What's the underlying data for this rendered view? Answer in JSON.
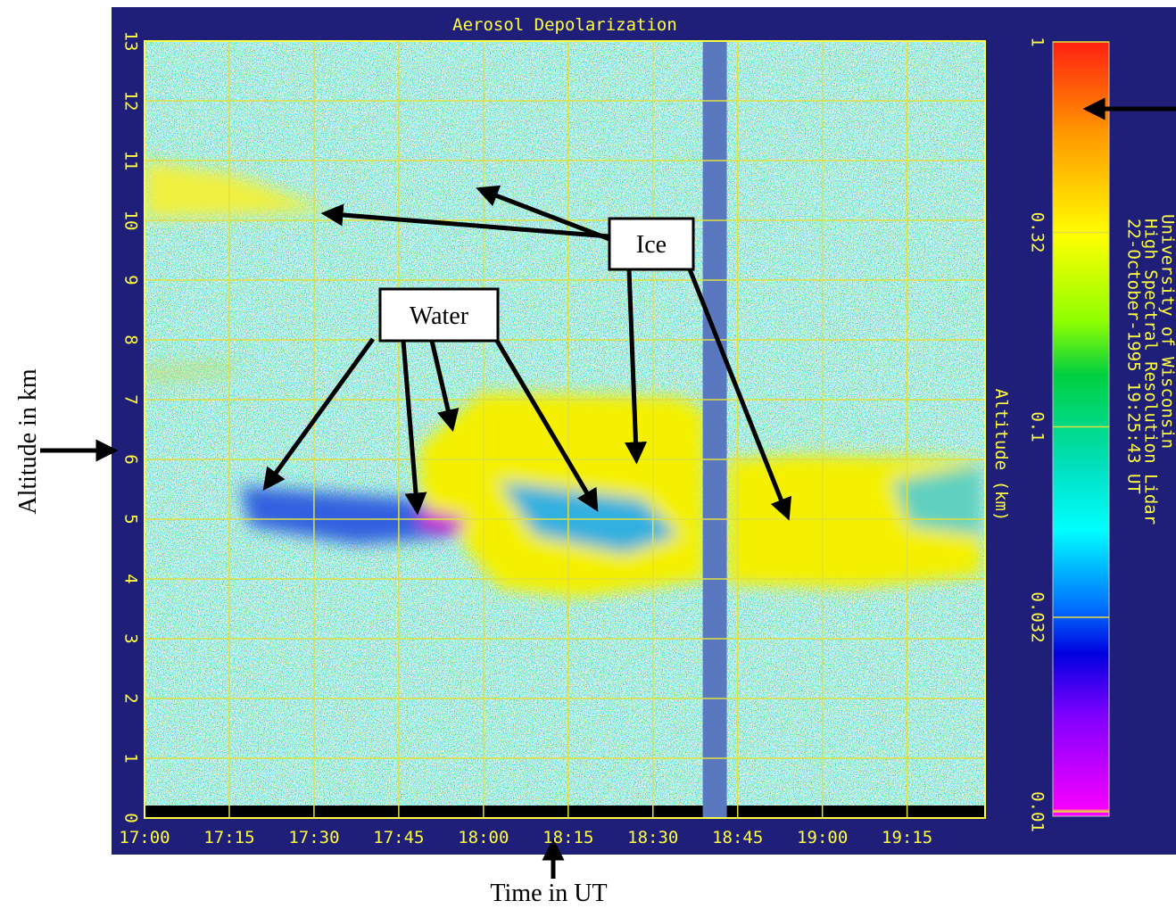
{
  "chart_data": {
    "type": "heatmap",
    "title": "Aerosol Depolarization",
    "y_label": "Altitude (km)",
    "ylim": [
      0,
      13
    ],
    "yticks": [
      0,
      1,
      2,
      3,
      4,
      5,
      6,
      7,
      8,
      9,
      10,
      11,
      12,
      13
    ],
    "xlim": [
      17,
      19.48
    ],
    "xticks": [
      {
        "value": 17,
        "label": "17:00"
      },
      {
        "value": 17.25,
        "label": "17:15"
      },
      {
        "value": 17.5,
        "label": "17:30"
      },
      {
        "value": 17.75,
        "label": "17:45"
      },
      {
        "value": 18,
        "label": "18:00"
      },
      {
        "value": 18.25,
        "label": "18:15"
      },
      {
        "value": 18.5,
        "label": "18:30"
      },
      {
        "value": 18.75,
        "label": "18:45"
      },
      {
        "value": 19,
        "label": "19:00"
      },
      {
        "value": 19.25,
        "label": "19:15"
      }
    ],
    "grid": true,
    "data_gaps": [
      [
        18.647,
        18.718
      ]
    ],
    "colorbar": {
      "scale": "log",
      "lim": [
        0.01,
        1
      ],
      "ticks": [
        1,
        0.32,
        0.1,
        0.032,
        0.01
      ]
    },
    "side_text": [
      "University of Wisconsin",
      "High Spectral Resolution Lidar",
      "22-October-1995 19:25:43 UT"
    ],
    "annotations": {
      "ice": "Ice",
      "water": "Water",
      "altitude": "Altitude in km",
      "time": "Time in UT"
    }
  }
}
